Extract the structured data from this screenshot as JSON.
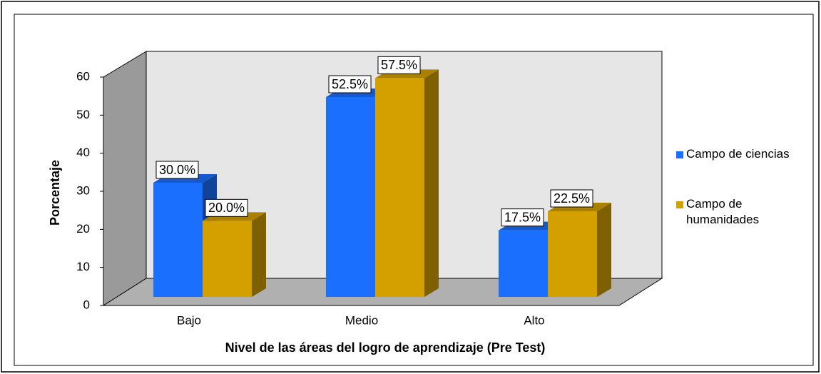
{
  "chart_data": {
    "type": "bar3d",
    "x_label": "Nivel de las áreas del logro de aprendizaje (Pre Test)",
    "y_label": "Porcentaje",
    "categories": [
      "Bajo",
      "Medio",
      "Alto"
    ],
    "series": [
      {
        "name": "Campo de ciencias",
        "color": "#1a6fff",
        "values": [
          30,
          52.5,
          17.5
        ],
        "value_labels": [
          "30.0%",
          "52.5%",
          "17.5%"
        ]
      },
      {
        "name": "Campo de humanidades",
        "color": "#d4a000",
        "values": [
          20,
          57.5,
          22.5
        ],
        "value_labels": [
          "20.0%",
          "57.5%",
          "22.5%"
        ]
      }
    ],
    "ylim": [
      0,
      60
    ],
    "yticks": [
      0,
      10,
      20,
      30,
      40,
      50,
      60
    ],
    "legend": "right"
  }
}
